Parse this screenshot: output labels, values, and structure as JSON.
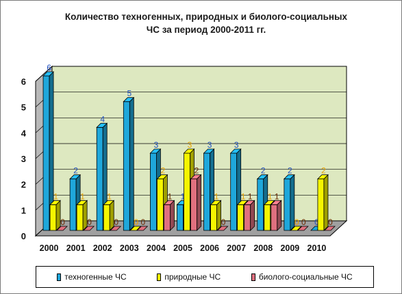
{
  "title_line1": "Количество техногенных, природных и биолого-социальных",
  "title_line2": "ЧС за период 2000-2011  гг.",
  "chart_data": {
    "type": "bar",
    "title": "Количество техногенных, природных и биолого-социальных ЧС за период 2000-2011  гг.",
    "categories": [
      "2000",
      "2001",
      "2002",
      "2003",
      "2004",
      "2005",
      "2006",
      "2007",
      "2008",
      "2009",
      "2010"
    ],
    "series": [
      {
        "name": "техногенные ЧС",
        "values": [
          6,
          2,
          4,
          5,
          3,
          1,
          3,
          3,
          2,
          2,
          0
        ],
        "color": "#1fa7db",
        "label_color": "#2050c0"
      },
      {
        "name": "природные ЧС",
        "values": [
          1,
          1,
          1,
          0,
          2,
          3,
          1,
          1,
          1,
          0,
          2
        ],
        "color": "#f5f500",
        "label_color": "#e8a400"
      },
      {
        "name": "биолого-социальные ЧС",
        "values": [
          0,
          0,
          0,
          0,
          1,
          2,
          0,
          1,
          1,
          0,
          0
        ],
        "color": "#e0707f",
        "label_color": "#6a2a00"
      }
    ],
    "yticks": [
      "0",
      "1",
      "2",
      "3",
      "4",
      "5",
      "6"
    ],
    "ylim": [
      0,
      6
    ],
    "grid": true,
    "legend_position": "bottom",
    "wall_color": "#dde8c0",
    "floor_color": "#a0a0a0"
  }
}
